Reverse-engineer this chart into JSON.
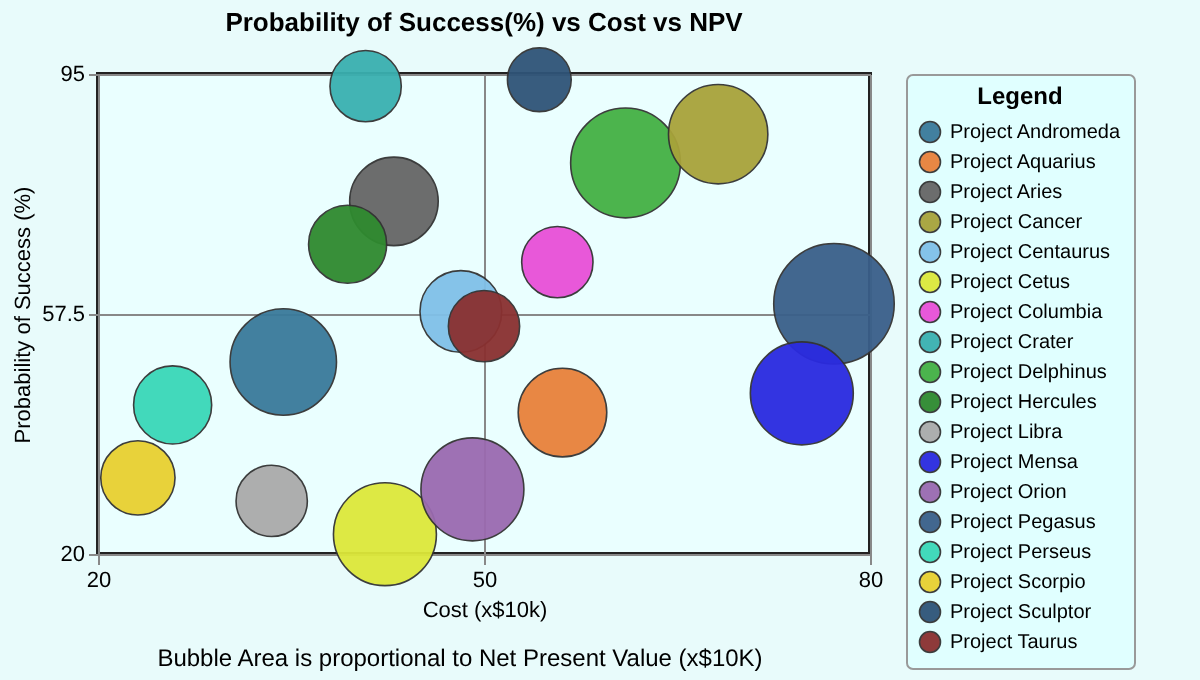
{
  "chart_data": {
    "type": "bubble",
    "title": "Probability of Success(%) vs Cost vs NPV",
    "xlabel": "Cost (x$10k)",
    "ylabel": "Probability of Success (%)",
    "legend_title": "Legend",
    "annotations": [
      "Bubble Area is proportional to Net Present Value (x$10K)"
    ],
    "xlim": [
      20,
      80
    ],
    "ylim": [
      20,
      95
    ],
    "xticks": [
      20,
      50,
      80
    ],
    "yticks": [
      20,
      57.5,
      95
    ],
    "grid": true,
    "legend": "right",
    "series": [
      {
        "name": "Project Andromeda",
        "color": "#3a7a9a",
        "x": [
          34.4
        ],
        "values": [
          50.0
        ],
        "sizes": [
          0.78
        ]
      },
      {
        "name": "Project Aquarius",
        "color": "#e8813a",
        "x": [
          56.1
        ],
        "values": [
          42.1
        ],
        "sizes": [
          0.54
        ]
      },
      {
        "name": "Project Aries",
        "color": "#666666",
        "x": [
          43.0
        ],
        "values": [
          75.1
        ],
        "sizes": [
          0.54
        ]
      },
      {
        "name": "Project Cancer",
        "color": "#a8a33a",
        "x": [
          68.2
        ],
        "values": [
          85.6
        ],
        "sizes": [
          0.68
        ]
      },
      {
        "name": "Project Centaurus",
        "color": "#80c0e8",
        "x": [
          48.2
        ],
        "values": [
          57.9
        ],
        "sizes": [
          0.46
        ]
      },
      {
        "name": "Project Cetus",
        "color": "#dde83a",
        "x": [
          42.3
        ],
        "values": [
          23.1
        ],
        "sizes": [
          0.73
        ]
      },
      {
        "name": "Project Columbia",
        "color": "#e850d8",
        "x": [
          55.7
        ],
        "values": [
          65.6
        ],
        "sizes": [
          0.35
        ]
      },
      {
        "name": "Project Crater",
        "color": "#3ab0b0",
        "x": [
          40.8
        ],
        "values": [
          93.1
        ],
        "sizes": [
          0.35
        ]
      },
      {
        "name": "Project Delphinus",
        "color": "#44b044",
        "x": [
          61.0
        ],
        "values": [
          81.1
        ],
        "sizes": [
          0.83
        ]
      },
      {
        "name": "Project Hercules",
        "color": "#2f8a2f",
        "x": [
          39.4
        ],
        "values": [
          68.4
        ],
        "sizes": [
          0.42
        ]
      },
      {
        "name": "Project Libra",
        "color": "#aaaaaa",
        "x": [
          33.5
        ],
        "values": [
          28.3
        ],
        "sizes": [
          0.35
        ]
      },
      {
        "name": "Project Mensa",
        "color": "#2a2ae0",
        "x": [
          74.7
        ],
        "values": [
          45.1
        ],
        "sizes": [
          0.73
        ]
      },
      {
        "name": "Project Orion",
        "color": "#9a6ab0",
        "x": [
          49.1
        ],
        "values": [
          30.1
        ],
        "sizes": [
          0.73
        ]
      },
      {
        "name": "Project Pegasus",
        "color": "#3a5f8a",
        "x": [
          77.2
        ],
        "values": [
          59.1
        ],
        "sizes": [
          1
        ]
      },
      {
        "name": "Project Perseus",
        "color": "#3ad8b8",
        "x": [
          25.8
        ],
        "values": [
          43.3
        ],
        "sizes": [
          0.42
        ]
      },
      {
        "name": "Project Scorpio",
        "color": "#e8d030",
        "x": [
          23.1
        ],
        "values": [
          31.9
        ],
        "sizes": [
          0.38
        ]
      },
      {
        "name": "Project Sculptor",
        "color": "#2f5478",
        "x": [
          54.3
        ],
        "values": [
          94.1
        ],
        "sizes": [
          0.28
        ]
      },
      {
        "name": "Project Taurus",
        "color": "#8a3030",
        "x": [
          50.0
        ],
        "values": [
          55.6
        ],
        "sizes": [
          0.35
        ]
      }
    ]
  }
}
